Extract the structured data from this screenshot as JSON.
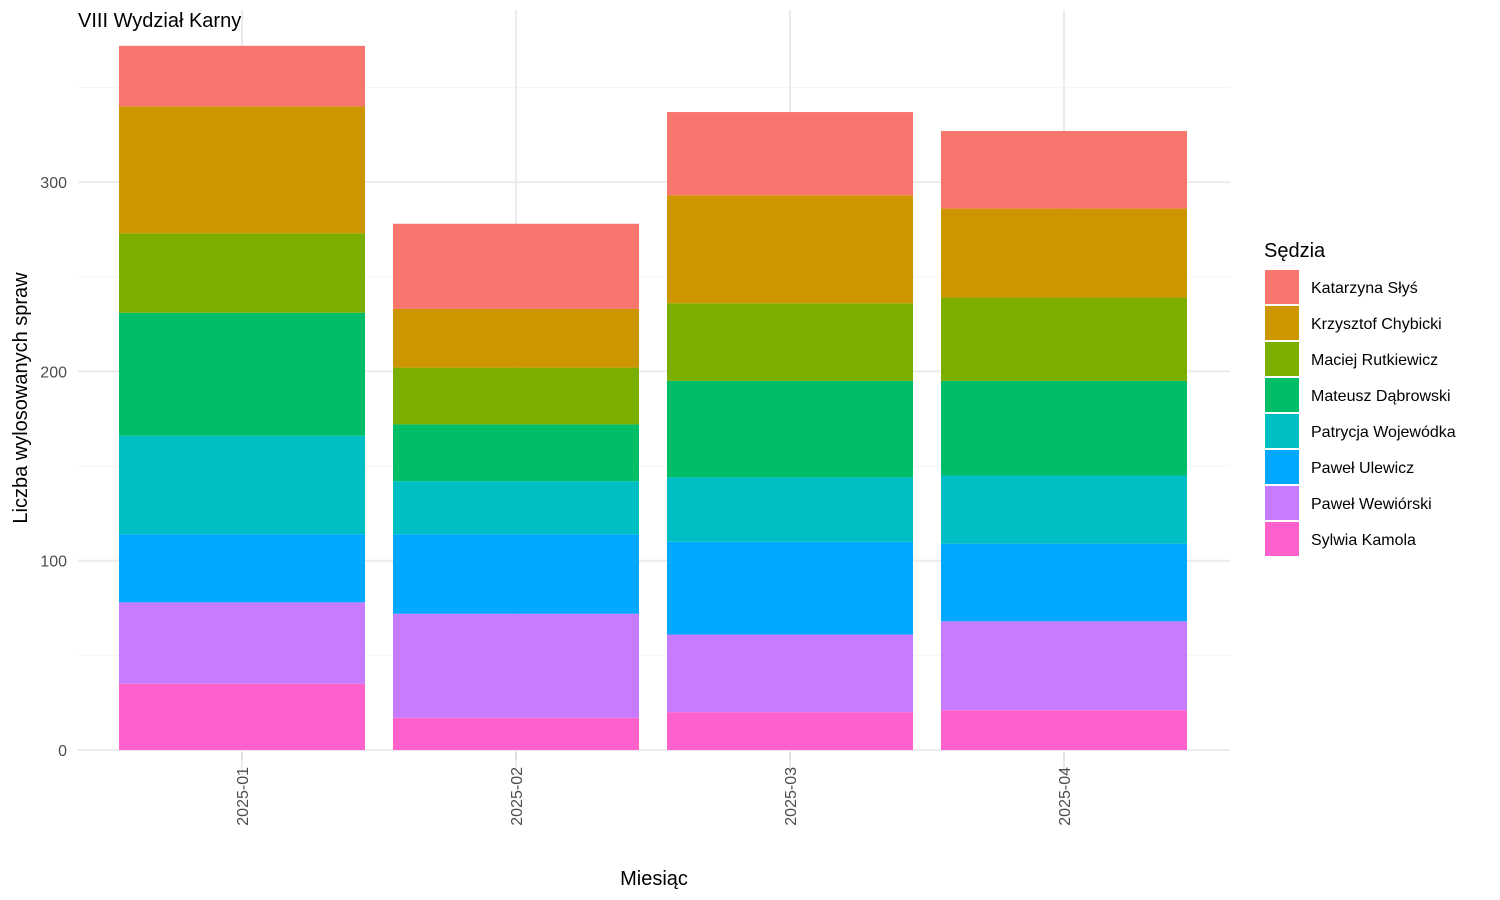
{
  "chart_data": {
    "type": "bar",
    "stacked": true,
    "title": "VIII Wydział Karny",
    "xlabel": "Miesiąc",
    "ylabel": "Liczba wylosowanych spraw",
    "ylim": [
      0,
      400
    ],
    "yticks": [
      0,
      100,
      200,
      300
    ],
    "grid": true,
    "legend": {
      "title": "Sędzia",
      "position": "right"
    },
    "categories": [
      "2025-01",
      "2025-02",
      "2025-03",
      "2025-04"
    ],
    "series": [
      {
        "name": "Katarzyna Słyś",
        "color": "#F8766D",
        "values": [
          32,
          45,
          44,
          41
        ]
      },
      {
        "name": "Krzysztof Chybicki",
        "color": "#CD9600",
        "values": [
          67,
          31,
          57,
          47
        ]
      },
      {
        "name": "Maciej Rutkiewicz",
        "color": "#7CAE00",
        "values": [
          42,
          30,
          41,
          44
        ]
      },
      {
        "name": "Mateusz Dąbrowski",
        "color": "#00BE67",
        "values": [
          65,
          30,
          51,
          50
        ]
      },
      {
        "name": "Patrycja Wojewódka",
        "color": "#00BFC4",
        "values": [
          52,
          28,
          34,
          36
        ]
      },
      {
        "name": "Paweł Ulewicz",
        "color": "#00A9FF",
        "values": [
          36,
          42,
          49,
          41
        ]
      },
      {
        "name": "Paweł Wewiórski",
        "color": "#C77CFF",
        "values": [
          43,
          55,
          41,
          47
        ]
      },
      {
        "name": "Sylwia Kamola",
        "color": "#FF61CC",
        "values": [
          35,
          17,
          20,
          21
        ]
      }
    ]
  }
}
